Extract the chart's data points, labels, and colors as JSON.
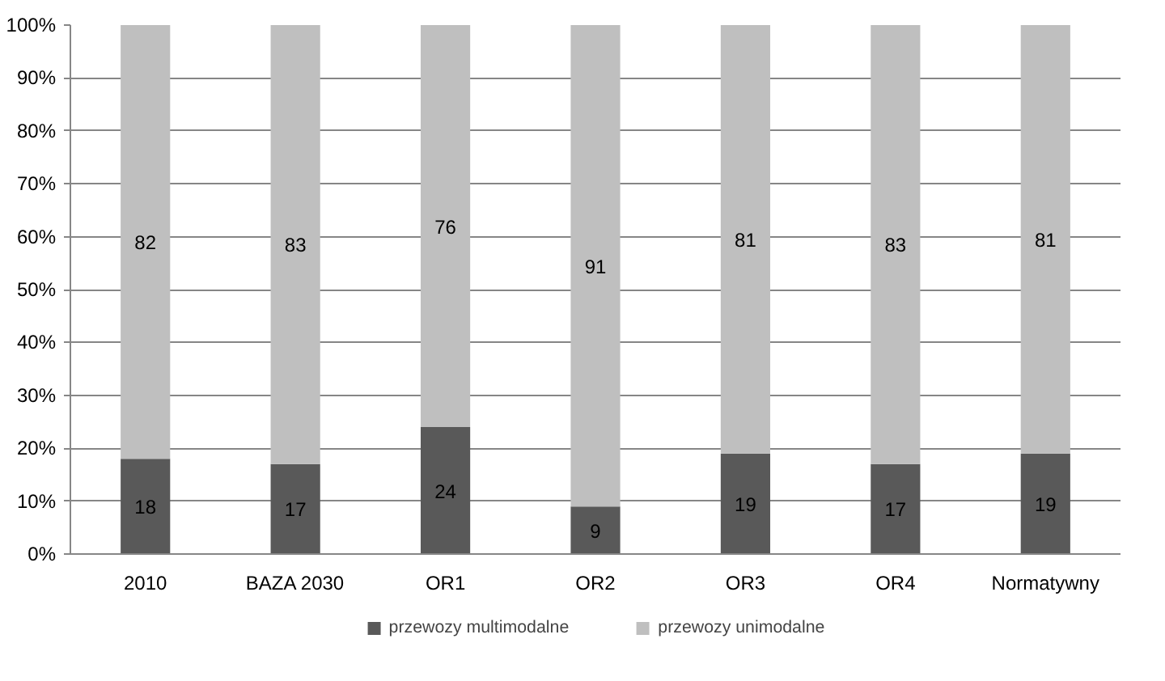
{
  "chart_data": {
    "type": "bar",
    "stacked": true,
    "categories": [
      "2010",
      "BAZA 2030",
      "OR1",
      "OR2",
      "OR3",
      "OR4",
      "Normatywny"
    ],
    "series": [
      {
        "name": "przewozy multimodalne",
        "color": "#595959",
        "values": [
          18,
          17,
          24,
          9,
          19,
          17,
          19
        ]
      },
      {
        "name": "przewozy unimodalne",
        "color": "#bfbfbf",
        "values": [
          82,
          83,
          76,
          91,
          81,
          83,
          81
        ]
      }
    ],
    "ylim": [
      0,
      100
    ],
    "yticks": [
      {
        "value": 0,
        "label": "0%"
      },
      {
        "value": 10,
        "label": "10%"
      },
      {
        "value": 20,
        "label": "20%"
      },
      {
        "value": 30,
        "label": "30%"
      },
      {
        "value": 40,
        "label": "40%"
      },
      {
        "value": 50,
        "label": "50%"
      },
      {
        "value": 60,
        "label": "60%"
      },
      {
        "value": 70,
        "label": "70%"
      },
      {
        "value": 80,
        "label": "80%"
      },
      {
        "value": 90,
        "label": "90%"
      },
      {
        "value": 100,
        "label": "100%"
      }
    ],
    "grid": "y",
    "legend": "bottom",
    "data_labels": true
  }
}
